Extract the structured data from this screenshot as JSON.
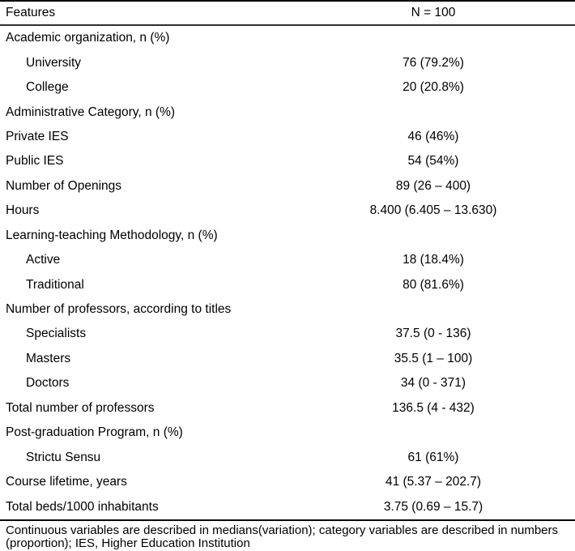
{
  "table": {
    "header": {
      "feature_col": "Features",
      "value_col": "N = 100"
    },
    "rows": [
      {
        "label": "Academic organization, n (%)",
        "value": "",
        "indent": false
      },
      {
        "label": "University",
        "value": "76 (79.2%)",
        "indent": true
      },
      {
        "label": "College",
        "value": "20 (20.8%)",
        "indent": true
      },
      {
        "label": "Administrative Category, n (%)",
        "value": "",
        "indent": false
      },
      {
        "label": "Private IES",
        "value": "46 (46%)",
        "indent": false
      },
      {
        "label": "Public IES",
        "value": "54 (54%)",
        "indent": false
      },
      {
        "label": "Number of Openings",
        "value": "89 (26 – 400)",
        "indent": false
      },
      {
        "label": "Hours",
        "value": "8.400 (6.405 – 13.630)",
        "indent": false
      },
      {
        "label": "Learning-teaching Methodology, n (%)",
        "value": "",
        "indent": false
      },
      {
        "label": "Active",
        "value": "18 (18.4%)",
        "indent": true
      },
      {
        "label": "Traditional",
        "value": "80 (81.6%)",
        "indent": true
      },
      {
        "label": "Number of professors, according to titles",
        "value": "",
        "indent": false
      },
      {
        "label": "Specialists",
        "value": "37.5 (0 - 136)",
        "indent": true
      },
      {
        "label": "Masters",
        "value": "35.5 (1 – 100)",
        "indent": true
      },
      {
        "label": "Doctors",
        "value": "34 (0 - 371)",
        "indent": true
      },
      {
        "label": "Total number of professors",
        "value": "136.5 (4 - 432)",
        "indent": false
      },
      {
        "label": "Post-graduation Program, n (%)",
        "value": "",
        "indent": false
      },
      {
        "label": "Strictu Sensu",
        "value": "61 (61%)",
        "indent": true
      },
      {
        "label": "Course lifetime, years",
        "value": "41 (5.37 – 202.7)",
        "indent": false
      },
      {
        "label": "Total beds/1000 inhabitants",
        "value": "3.75 (0.69 – 15.7)",
        "indent": false
      }
    ],
    "footnote": "Continuous variables are described in medians(variation); category variables are described in numbers (proportion); IES, Higher Education Institution",
    "colors": {
      "text": "#000000",
      "rule": "#000000"
    }
  }
}
